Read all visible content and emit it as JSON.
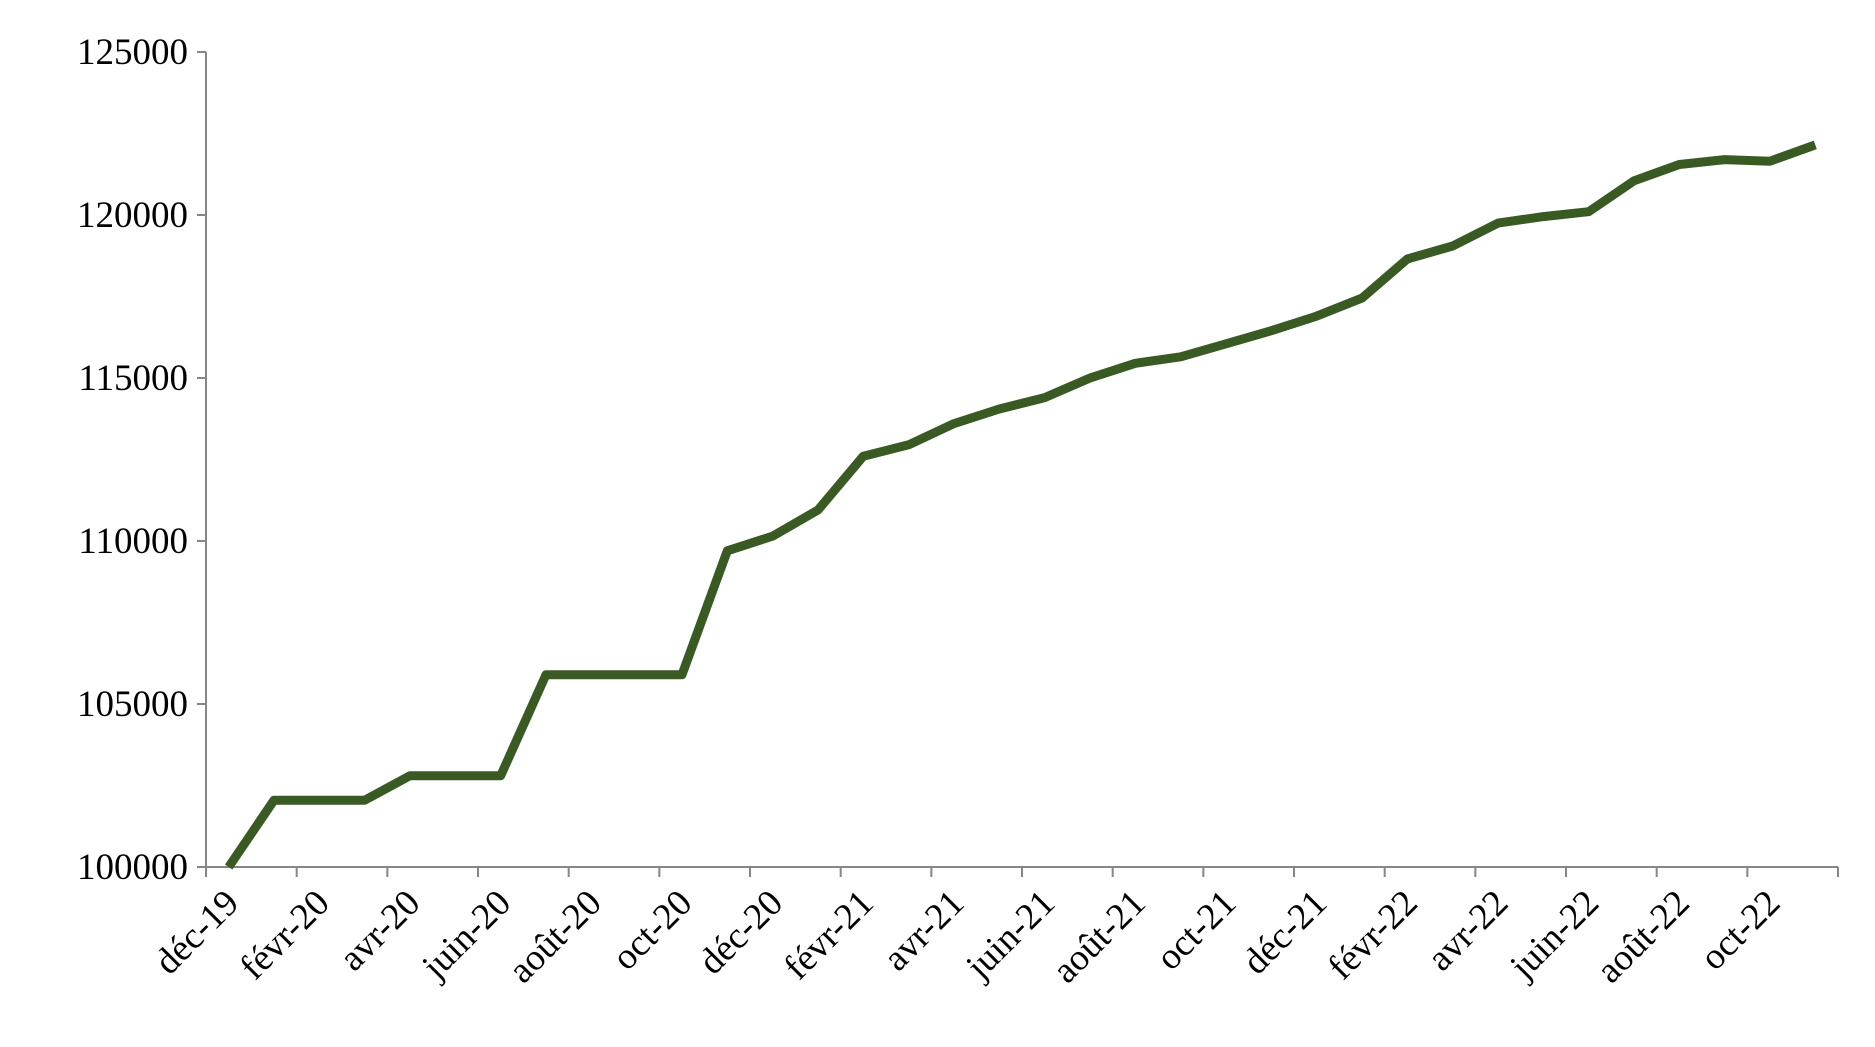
{
  "chart_data": {
    "type": "line",
    "categories": [
      "déc-19",
      null,
      "févr-20",
      null,
      "avr-20",
      null,
      "juin-20",
      null,
      "août-20",
      null,
      "oct-20",
      null,
      "déc-20",
      null,
      "févr-21",
      null,
      "avr-21",
      null,
      "juin-21",
      null,
      "août-21",
      null,
      "oct-21",
      null,
      "déc-21",
      null,
      "févr-22",
      null,
      "avr-22",
      null,
      "juin-22",
      null,
      "août-22",
      null,
      "oct-22",
      null
    ],
    "series": [
      {
        "name": null,
        "color": "#3a5a24",
        "values": [
          100000,
          102050,
          102050,
          102050,
          102800,
          102800,
          102800,
          105900,
          105900,
          105900,
          105900,
          109700,
          110150,
          110950,
          112600,
          112950,
          113600,
          114050,
          114400,
          115000,
          115450,
          115650,
          116050,
          116450,
          116900,
          117450,
          118650,
          119050,
          119750,
          119950,
          120100,
          121050,
          121550,
          121700,
          121650,
          122150
        ]
      }
    ],
    "ylim": [
      100000,
      125000
    ],
    "yticks": [
      100000,
      105000,
      110000,
      115000,
      120000,
      125000
    ],
    "grid": false
  }
}
